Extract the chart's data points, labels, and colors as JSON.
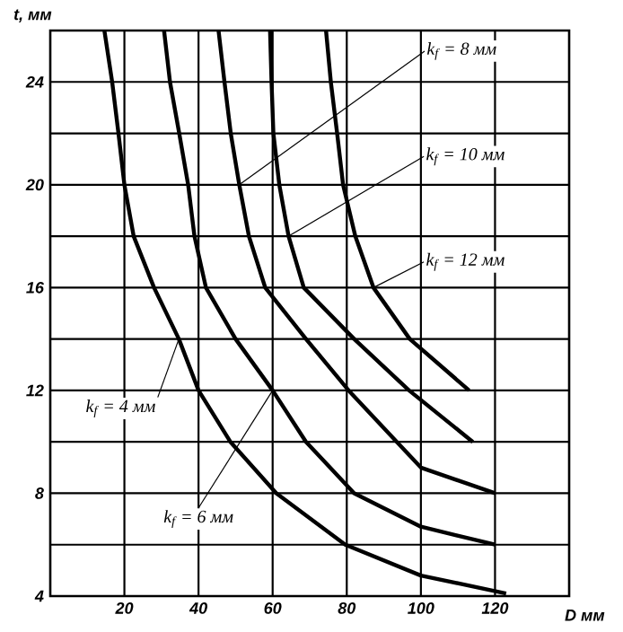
{
  "chart_data": {
    "type": "line",
    "xlabel": "D мм",
    "ylabel": "t, мм",
    "xlim": [
      0,
      140
    ],
    "ylim": [
      4,
      26
    ],
    "xticks": [
      20,
      40,
      60,
      80,
      100,
      120
    ],
    "yticks": [
      4,
      {
        "value": 6,
        "label": null
      },
      8,
      {
        "value": 10,
        "label": null
      },
      12,
      {
        "value": 14,
        "label": null
      },
      16,
      {
        "value": 18,
        "label": null
      },
      20,
      {
        "value": 22,
        "label": null
      },
      24
    ],
    "grid": true,
    "series": [
      {
        "color": "#000000",
        "x": [
          14.6,
          16.7,
          18.4,
          20,
          22.5,
          28,
          34.7,
          40,
          48.6,
          61,
          79.6,
          100,
          123
        ],
        "values": [
          26,
          24,
          22,
          20,
          18,
          16,
          14,
          12,
          10,
          8,
          6,
          4.8,
          4.1
        ]
      },
      {
        "color": "#000000",
        "x": [
          30.7,
          32.3,
          34.8,
          37.2,
          38.9,
          42,
          50,
          60,
          69,
          82,
          100,
          120
        ],
        "values": [
          26,
          24,
          22,
          20,
          18,
          16,
          14,
          12,
          10,
          8,
          6.7,
          6
        ]
      },
      {
        "color": "#000000",
        "x": [
          45.4,
          47,
          48.7,
          51,
          53.6,
          58,
          69,
          80.5,
          93.5,
          100,
          120
        ],
        "values": [
          26,
          24,
          22,
          20,
          18,
          16,
          14,
          12,
          10,
          9,
          8
        ]
      },
      {
        "color": "#000000",
        "x": [
          59.3,
          59.7,
          60.2,
          61.8,
          64.3,
          68.4,
          82,
          96.8,
          114
        ],
        "values": [
          26,
          24,
          22,
          20,
          18,
          16,
          14,
          12,
          10
        ]
      },
      {
        "color": "#000000",
        "x": [
          74.4,
          75.7,
          77.4,
          79,
          82.3,
          87.2,
          97,
          113
        ],
        "values": [
          26,
          24,
          22,
          20,
          18,
          16,
          14,
          12
        ]
      }
    ],
    "annotations": [
      {
        "text": "k$_{f}$ = 4 мм",
        "x": 34.7,
        "y": 14
      },
      {
        "text": "k$_{f}$ = 6 мм",
        "x": 60,
        "y": 12
      },
      {
        "text": "k$_{f}$ = 8 мм",
        "x": 51,
        "y": 20
      },
      {
        "text": "k$_{f}$ = 10 мм",
        "x": 64.3,
        "y": 18
      },
      {
        "text": "k$_{f}$ = 12 мм",
        "x": 87.2,
        "y": 16
      }
    ]
  }
}
